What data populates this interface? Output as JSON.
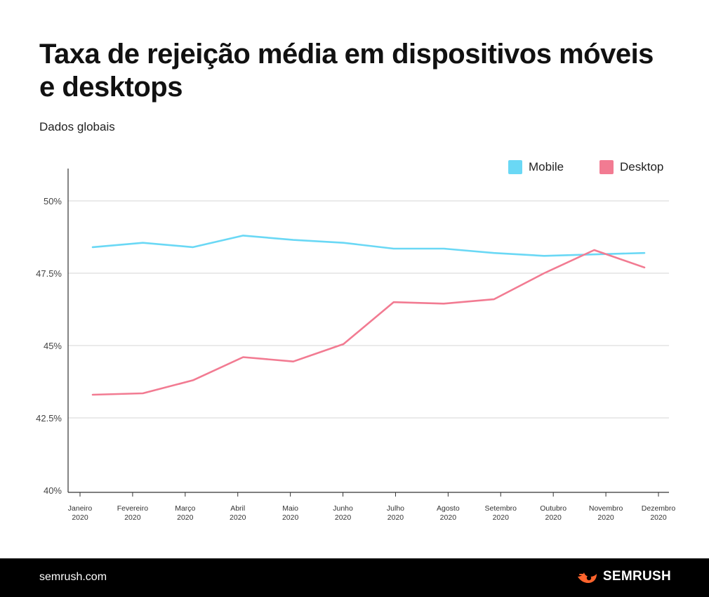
{
  "header": {
    "title": "Taxa de rejeição média em dispositivos móveis e desktops",
    "subtitle": "Dados globais"
  },
  "footer": {
    "site": "semrush.com",
    "brand": "SEMRUSH"
  },
  "colors": {
    "mobile": "#6ad8f5",
    "desktop": "#f27b92",
    "grid": "#d4d4d4",
    "axis": "#333333",
    "brand_orange": "#ff642d"
  },
  "chart_data": {
    "type": "line",
    "title": "Taxa de rejeição média em dispositivos móveis e desktops",
    "subtitle": "Dados globais",
    "xlabel": "",
    "ylabel": "",
    "ylim": [
      40,
      51
    ],
    "yticks": [
      40,
      42.5,
      45,
      47.5,
      50
    ],
    "ytick_labels": [
      "40%",
      "42.5%",
      "45%",
      "47.5%",
      "50%"
    ],
    "grid": true,
    "legend": "top-right",
    "categories": [
      [
        "Janeiro",
        "2020"
      ],
      [
        "Fevereiro",
        "2020"
      ],
      [
        "Março",
        "2020"
      ],
      [
        "Abril",
        "2020"
      ],
      [
        "Maio",
        "2020"
      ],
      [
        "Junho",
        "2020"
      ],
      [
        "Julho",
        "2020"
      ],
      [
        "Agosto",
        "2020"
      ],
      [
        "Setembro",
        "2020"
      ],
      [
        "Outubro",
        "2020"
      ],
      [
        "Novembro",
        "2020"
      ],
      [
        "Dezembro",
        "2020"
      ]
    ],
    "series": [
      {
        "name": "Mobile",
        "color": "#6ad8f5",
        "values": [
          48.4,
          48.55,
          48.4,
          48.8,
          48.65,
          48.55,
          48.35,
          48.35,
          48.2,
          48.1,
          48.15,
          48.2
        ]
      },
      {
        "name": "Desktop",
        "color": "#f27b92",
        "values": [
          43.3,
          43.35,
          43.8,
          44.6,
          44.45,
          45.05,
          46.5,
          46.45,
          46.6,
          47.5,
          48.3,
          47.7
        ]
      }
    ]
  }
}
